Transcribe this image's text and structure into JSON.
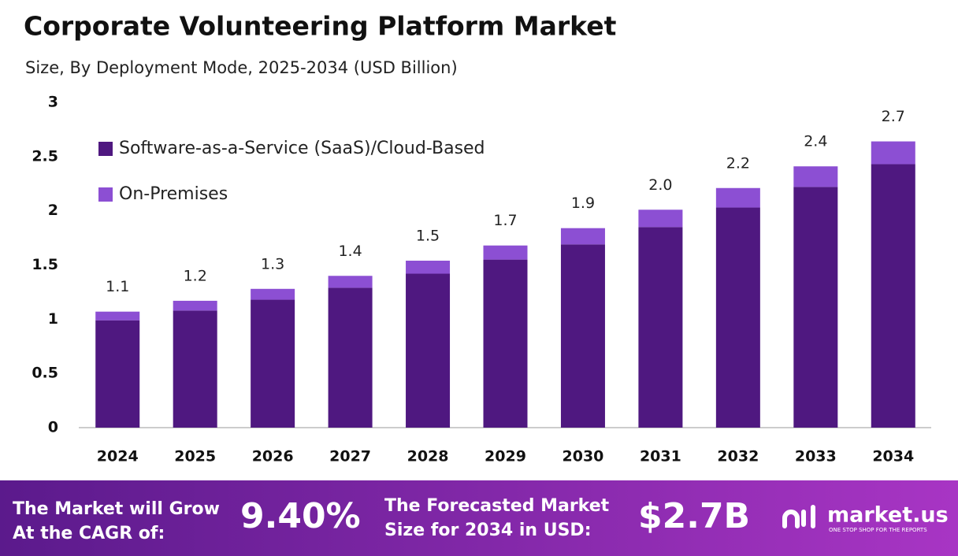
{
  "chart_data": {
    "type": "stacked_bar",
    "title": "Corporate Volunteering Platform Market",
    "subtitle": "Size, By Deployment Mode, 2025-2034 (USD Billion)",
    "categories": [
      "2024",
      "2025",
      "2026",
      "2027",
      "2028",
      "2029",
      "2030",
      "2031",
      "2032",
      "2033",
      "2034"
    ],
    "series": [
      {
        "name": "Software-as-a-Service (SaaS)/Cloud-Based",
        "color": "#4f1880",
        "values": [
          0.99,
          1.08,
          1.18,
          1.29,
          1.42,
          1.55,
          1.69,
          1.85,
          2.03,
          2.22,
          2.43
        ]
      },
      {
        "name": "On-Premises",
        "color": "#8c4fd3",
        "values": [
          0.08,
          0.09,
          0.1,
          0.11,
          0.12,
          0.13,
          0.15,
          0.16,
          0.18,
          0.19,
          0.21
        ]
      }
    ],
    "totals": {
      "values": [
        1.1,
        1.2,
        1.3,
        1.4,
        1.5,
        1.7,
        1.9,
        2.0,
        2.2,
        2.4,
        2.7
      ],
      "value_labels": [
        "1.1",
        "1.2",
        "1.3",
        "1.4",
        "1.5",
        "1.7",
        "1.9",
        "2.0",
        "2.2",
        "2.4",
        "2.7"
      ]
    },
    "ylim": [
      0,
      3
    ],
    "yticks": [
      0,
      0.5,
      1,
      1.5,
      2,
      2.5,
      3
    ],
    "grid": false,
    "legend": "top-left"
  },
  "footer": {
    "cagr_label": [
      "The Market will Grow",
      "At the CAGR of:"
    ],
    "cagr": "9.40%",
    "forecast_label": [
      "The Forecasted Market",
      "Size for 2034 in USD:"
    ],
    "forecast": "$2.7B",
    "brand": "market.us",
    "tagline": "ONE STOP SHOP FOR THE REPORTS"
  }
}
